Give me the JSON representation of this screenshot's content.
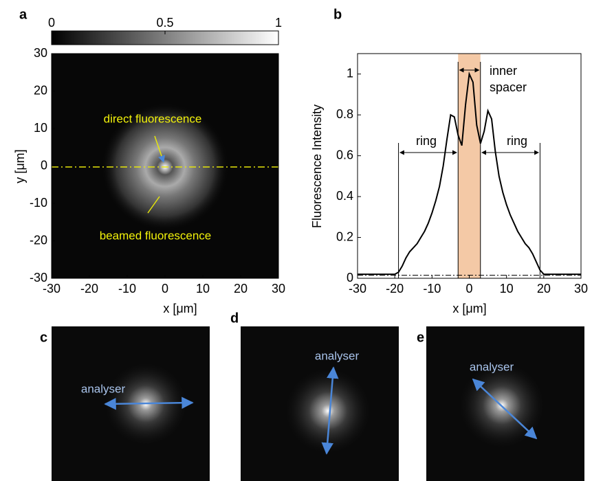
{
  "chart_data": [
    {
      "type": "image",
      "panel_label": "a",
      "xlabel": "x [μm]",
      "ylabel": "y [μm]",
      "xlim": [
        -30,
        30
      ],
      "ylim": [
        -30,
        30
      ],
      "xticks": [
        -30,
        -20,
        -10,
        0,
        10,
        20,
        30
      ],
      "yticks": [
        -30,
        -20,
        -10,
        0,
        10,
        20,
        30
      ],
      "colorbar_lim": [
        0,
        1
      ],
      "colorbar_ticks": [
        0,
        0.5,
        1
      ],
      "annotations": [
        "direct fluorescence",
        "beamed fluorescence"
      ]
    },
    {
      "type": "line",
      "panel_label": "b",
      "xlabel": "x [μm]",
      "ylabel": "Fluorescence Intensity",
      "xlim": [
        -30,
        30
      ],
      "ylim": [
        0,
        1.1
      ],
      "xticks": [
        -30,
        -20,
        -10,
        0,
        10,
        20,
        30
      ],
      "yticks": [
        0,
        0.2,
        0.4,
        0.6,
        0.8,
        1
      ],
      "x": [
        -30,
        -29,
        -28,
        -27,
        -26,
        -25,
        -24,
        -23,
        -22,
        -21,
        -20,
        -19,
        -18,
        -17,
        -16,
        -15,
        -14,
        -13,
        -12,
        -11,
        -10,
        -9,
        -8,
        -7,
        -6,
        -5,
        -4,
        -3,
        -2,
        -1,
        0,
        1,
        2,
        3,
        4,
        5,
        6,
        7,
        8,
        9,
        10,
        11,
        12,
        13,
        14,
        15,
        16,
        17,
        18,
        19,
        20,
        21,
        22,
        23,
        24,
        25,
        26,
        27,
        28,
        29,
        30
      ],
      "series": [
        {
          "color": "#000000",
          "values": [
            0.02,
            0.02,
            0.02,
            0.02,
            0.02,
            0.02,
            0.02,
            0.02,
            0.02,
            0.02,
            0.02,
            0.03,
            0.06,
            0.1,
            0.13,
            0.15,
            0.17,
            0.2,
            0.23,
            0.27,
            0.32,
            0.38,
            0.45,
            0.55,
            0.68,
            0.8,
            0.79,
            0.7,
            0.65,
            0.85,
            1.0,
            0.96,
            0.75,
            0.66,
            0.72,
            0.82,
            0.78,
            0.62,
            0.5,
            0.42,
            0.36,
            0.31,
            0.27,
            0.23,
            0.2,
            0.17,
            0.15,
            0.12,
            0.08,
            0.04,
            0.02,
            0.02,
            0.02,
            0.02,
            0.02,
            0.02,
            0.02,
            0.02,
            0.02,
            0.02,
            0.02
          ]
        }
      ],
      "markers": [
        -19,
        -3,
        3,
        19
      ],
      "band": [
        -3,
        3
      ],
      "baseline": 0.015,
      "annotations": [
        "ring",
        "ring",
        "inner",
        "spacer"
      ]
    }
  ],
  "images": [
    {
      "panel_label": "c",
      "annotation": "analyser"
    },
    {
      "panel_label": "d",
      "annotation": "analyser"
    },
    {
      "panel_label": "e",
      "annotation": "analyser"
    }
  ]
}
